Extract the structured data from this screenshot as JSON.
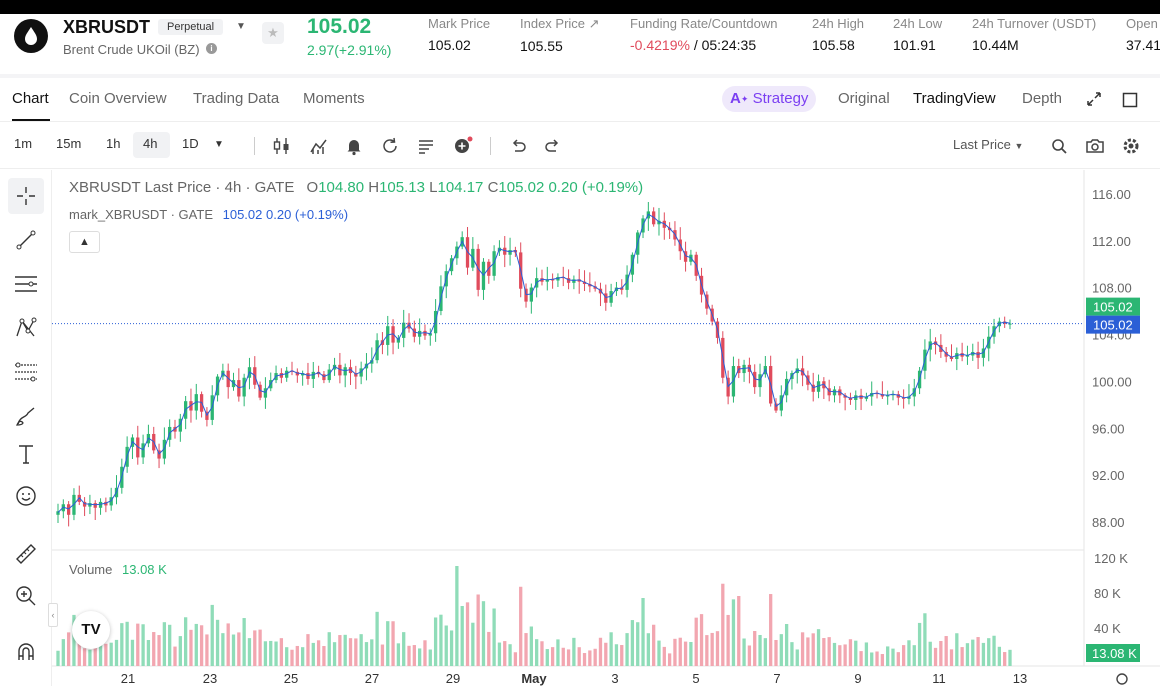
{
  "header": {
    "symbol": "XBRUSDT",
    "badge": "Perpetual",
    "subtitle": "Brent Crude UKOil (BZ)",
    "last_price": "105.02",
    "change": "2.97(+2.91%)",
    "stats": [
      {
        "label": "Mark Price",
        "value": "105.02"
      },
      {
        "label": "Index Price ↗",
        "value": "105.55"
      },
      {
        "label": "Funding Rate/Countdown",
        "value_neg": "-0.4219%",
        "value": " / 05:24:35"
      },
      {
        "label": "24h High",
        "value": "105.58"
      },
      {
        "label": "24h Low",
        "value": "101.91"
      },
      {
        "label": "24h Turnover (USDT)",
        "value": "10.44M"
      },
      {
        "label": "Open",
        "value": "37.41"
      }
    ]
  },
  "tabs": {
    "chart": "Chart",
    "coin_overview": "Coin Overview",
    "trading_data": "Trading Data",
    "moments": "Moments",
    "strategy": "Strategy",
    "original": "Original",
    "tradingview": "TradingView",
    "depth": "Depth"
  },
  "toolbar": {
    "timeframes": [
      "1m",
      "15m",
      "1h",
      "4h",
      "1D"
    ],
    "active_timeframe": "4h",
    "price_source": "Last Price"
  },
  "legend": {
    "title": "XBRUSDT Last Price · 4h · GATE",
    "o_label": "O",
    "o": "104.80",
    "h_label": "H",
    "h": "105.13",
    "l_label": "L",
    "l": "104.17",
    "c_label": "C",
    "c": "105.02",
    "chg": "0.20 (+0.19%)",
    "mark_title": "mark_XBRUSDT · GATE",
    "mark_value": "105.02",
    "mark_chg": "0.20 (+0.19%)",
    "volume_label": "Volume",
    "volume_value": "13.08 K"
  },
  "colors": {
    "up": "#2bb673",
    "down": "#e04b5c",
    "vol_up": "#8fdcb8",
    "vol_down": "#f2a6b0",
    "accent": "#7b3ff2",
    "mark_line": "#2b5fd6"
  },
  "chart_data": {
    "type": "candlestick",
    "price_axis": {
      "min": 88,
      "max": 116,
      "ticks": [
        "116.00",
        "112.00",
        "108.00",
        "104.00",
        "100.00",
        "96.00",
        "92.00",
        "88.00"
      ]
    },
    "volume_axis": {
      "ticks": [
        "120 K",
        "80 K",
        "40 K"
      ]
    },
    "x_tick_labels": [
      "21",
      "23",
      "25",
      "27",
      "29",
      "May",
      "3",
      "5",
      "7",
      "9",
      "11",
      "13"
    ],
    "last_price_label": "105.02",
    "mark_price_label": "105.02",
    "volume_label": "13.08 K",
    "closes": [
      89.0,
      89.6,
      88.7,
      90.4,
      89.8,
      89.4,
      89.7,
      89.3,
      89.8,
      89.5,
      90.2,
      91.0,
      92.8,
      94.5,
      95.3,
      93.6,
      94.8,
      95.6,
      94.2,
      93.5,
      95.1,
      96.2,
      95.8,
      96.9,
      98.4,
      97.6,
      99.0,
      97.5,
      96.8,
      98.9,
      100.5,
      101.0,
      99.6,
      100.2,
      98.8,
      100.4,
      101.3,
      99.8,
      98.7,
      99.5,
      100.2,
      100.8,
      100.4,
      101.0,
      100.9,
      100.6,
      100.8,
      100.3,
      100.9,
      100.7,
      100.2,
      101.1,
      101.5,
      100.6,
      101.3,
      100.8,
      100.5,
      101.2,
      101.6,
      101.9,
      103.6,
      103.2,
      104.8,
      103.4,
      103.8,
      105.1,
      104.6,
      103.9,
      104.4,
      104.0,
      104.2,
      106.1,
      108.2,
      109.5,
      110.6,
      111.6,
      112.4,
      109.8,
      111.4,
      107.9,
      110.3,
      109.1,
      111.2,
      111.5,
      110.9,
      111.3,
      111.1,
      108.0,
      106.9,
      108.1,
      108.9,
      108.6,
      108.8,
      108.7,
      109.0,
      108.9,
      108.5,
      108.8,
      108.6,
      108.4,
      108.2,
      108.0,
      107.6,
      106.8,
      107.8,
      108.1,
      107.9,
      109.2,
      110.9,
      112.8,
      114.0,
      114.6,
      113.5,
      113.8,
      113.2,
      113.0,
      112.2,
      111.2,
      110.3,
      110.9,
      109.1,
      107.5,
      106.3,
      105.2,
      103.8,
      100.4,
      98.8,
      101.4,
      100.8,
      101.5,
      100.9,
      99.6,
      100.7,
      101.4,
      98.2,
      97.6,
      98.9,
      100.3,
      100.8,
      101.2,
      100.6,
      99.8,
      99.2,
      100.1,
      99.5,
      98.9,
      99.4,
      98.9,
      98.7,
      98.5,
      98.9,
      98.6,
      98.8,
      99.1,
      99.0,
      98.8,
      98.9,
      99.0,
      98.7,
      98.6,
      98.8,
      99.5,
      101.0,
      102.8,
      103.5,
      103.2,
      102.6,
      102.2,
      102.0,
      102.5,
      102.2,
      102.3,
      102.6,
      102.1,
      102.9,
      103.9,
      104.8,
      105.2,
      105.0,
      105.02
    ]
  }
}
